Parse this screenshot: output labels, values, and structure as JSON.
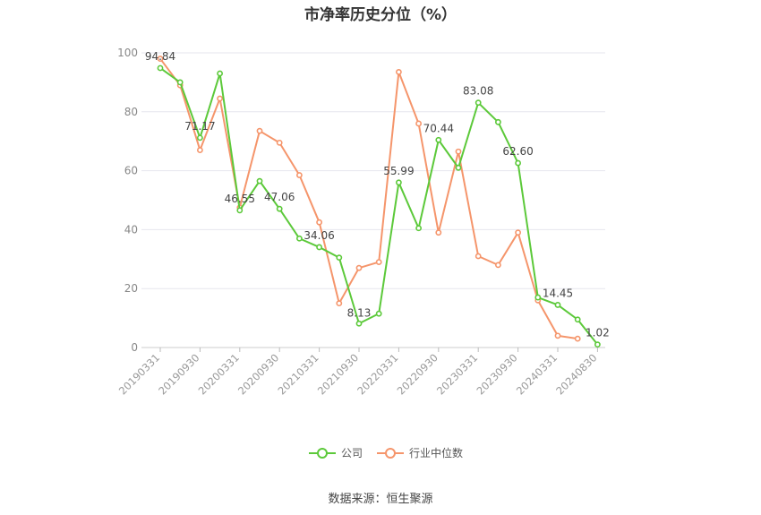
{
  "chart_data": {
    "type": "line",
    "title": "市净率历史分位（%）",
    "ylim": [
      0,
      100
    ],
    "yticks": [
      0,
      20,
      40,
      60,
      80,
      100
    ],
    "grid": true,
    "legend_position": "bottom",
    "x": [
      "20190331",
      "20190630",
      "20190930",
      "20191231",
      "20200331",
      "20200630",
      "20200930",
      "20201231",
      "20210331",
      "20210630",
      "20210930",
      "20211231",
      "20220331",
      "20220630",
      "20220930",
      "20221231",
      "20230331",
      "20230630",
      "20230930",
      "20231231",
      "20240331",
      "20240630",
      "20240830"
    ],
    "xtick_labels": [
      "20190331",
      "20190930",
      "20200331",
      "20200930",
      "20210331",
      "20210930",
      "20220331",
      "20220930",
      "20230331",
      "20230930",
      "20240331",
      "20240830"
    ],
    "series": [
      {
        "name": "公司",
        "color": "#5cc93a",
        "values": [
          94.84,
          90,
          71.17,
          93,
          46.55,
          56.5,
          47.06,
          37,
          34.06,
          30.5,
          8.13,
          11.5,
          55.99,
          40.5,
          70.44,
          61,
          83.08,
          76.5,
          62.6,
          17,
          14.45,
          9.5,
          1.02
        ],
        "point_labels": {
          "0": "94.84",
          "2": "71.17",
          "4": "46.55",
          "6": "47.06",
          "8": "34.06",
          "10": "8.13",
          "12": "55.99",
          "14": "70.44",
          "16": "83.08",
          "18": "62.60",
          "20": "14.45",
          "22": "1.02"
        }
      },
      {
        "name": "行业中位数",
        "color": "#f5956b",
        "values": [
          98,
          89,
          67,
          84.5,
          47.5,
          73.5,
          69.5,
          58.5,
          42.5,
          15,
          27,
          29,
          93.5,
          76,
          39,
          66.5,
          31,
          28,
          39,
          16,
          4,
          3,
          null
        ]
      }
    ]
  },
  "source": "数据来源：恒生聚源"
}
